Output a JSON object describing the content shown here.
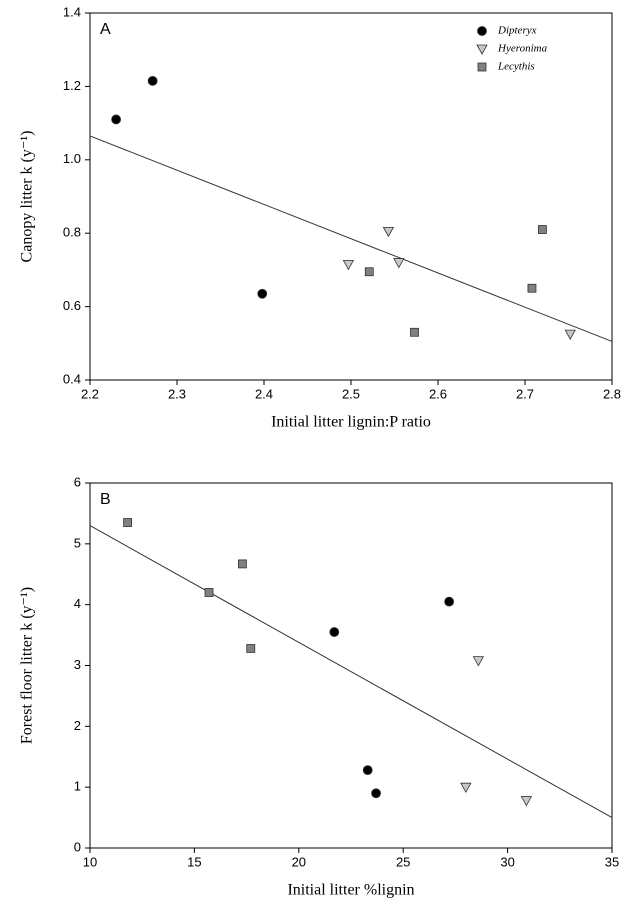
{
  "chart_data": [
    {
      "type": "scatter",
      "panel_label": "A",
      "xlabel": "Initial litter lignin:P ratio",
      "ylabel": "Canopy litter k (y⁻¹)",
      "xlim": [
        2.2,
        2.8
      ],
      "xticks": [
        2.2,
        2.3,
        2.4,
        2.5,
        2.6,
        2.7,
        2.8
      ],
      "ylim": [
        0.4,
        1.4
      ],
      "yticks": [
        0.4,
        0.6,
        0.8,
        {
          "value": 1,
          "label": "1.0"
        },
        1.2,
        1.4
      ],
      "legend": "upper right",
      "series": [
        {
          "name": "Dipteryx",
          "marker": "circle",
          "color": "#000000",
          "x": [
            2.23,
            2.272,
            2.398
          ],
          "values": [
            1.11,
            1.215,
            0.635
          ]
        },
        {
          "name": "Hyeronima",
          "marker": "triangle-down",
          "color": "#c8c8c8",
          "x": [
            2.497,
            2.543,
            2.555,
            2.752
          ],
          "values": [
            0.715,
            0.805,
            0.72,
            0.525
          ]
        },
        {
          "name": "Lecythis",
          "marker": "square",
          "color": "#808080",
          "x": [
            2.521,
            2.573,
            2.708,
            2.72
          ],
          "values": [
            0.695,
            0.53,
            0.65,
            0.81
          ]
        }
      ],
      "trendline": {
        "x": [
          2.2,
          2.8
        ],
        "values": [
          1.065,
          0.505
        ]
      }
    },
    {
      "type": "scatter",
      "panel_label": "B",
      "xlabel": "Initial litter %lignin",
      "ylabel": "Forest floor litter k (y⁻¹)",
      "xlim": [
        10,
        35
      ],
      "xticks": [
        10,
        15,
        20,
        25,
        30,
        35
      ],
      "ylim": [
        0,
        6
      ],
      "yticks": [
        0,
        1,
        2,
        3,
        4,
        5,
        6
      ],
      "series": [
        {
          "marker": "circle",
          "color": "#000000",
          "x": [
            21.7,
            27.2,
            23.3,
            23.7
          ],
          "values": [
            3.55,
            4.05,
            1.28,
            0.9
          ]
        },
        {
          "marker": "triangle-down",
          "color": "#c8c8c8",
          "x": [
            28.6,
            28.0,
            30.9
          ],
          "values": [
            3.08,
            1.0,
            0.78
          ]
        },
        {
          "marker": "square",
          "color": "#808080",
          "x": [
            11.8,
            15.7,
            17.3,
            17.7
          ],
          "values": [
            5.35,
            4.2,
            4.67,
            3.28
          ]
        }
      ],
      "trendline": {
        "x": [
          10,
          35
        ],
        "values": [
          5.3,
          0.5
        ]
      }
    }
  ]
}
